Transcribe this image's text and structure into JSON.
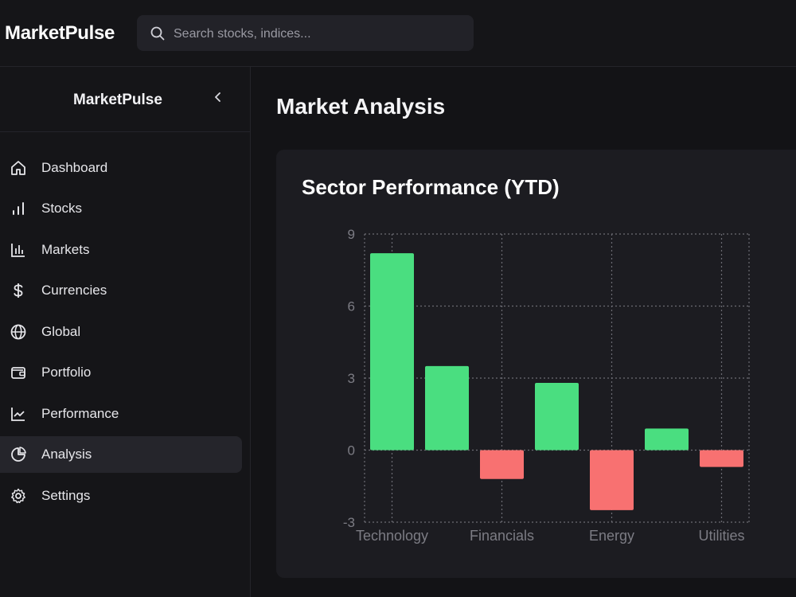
{
  "app": {
    "brand": "MarketPulse",
    "search": {
      "placeholder": "Search stocks, indices..."
    }
  },
  "sidebar": {
    "title": "MarketPulse",
    "items": [
      {
        "label": "Dashboard",
        "icon": "home-icon",
        "active": false
      },
      {
        "label": "Stocks",
        "icon": "bar-chart-icon",
        "active": false
      },
      {
        "label": "Markets",
        "icon": "chart-columns-icon",
        "active": false
      },
      {
        "label": "Currencies",
        "icon": "dollar-icon",
        "active": false
      },
      {
        "label": "Global",
        "icon": "globe-icon",
        "active": false
      },
      {
        "label": "Portfolio",
        "icon": "wallet-icon",
        "active": false
      },
      {
        "label": "Performance",
        "icon": "line-chart-icon",
        "active": false
      },
      {
        "label": "Analysis",
        "icon": "pie-chart-icon",
        "active": true
      },
      {
        "label": "Settings",
        "icon": "gear-icon",
        "active": false
      }
    ]
  },
  "main": {
    "title": "Market Analysis",
    "card": {
      "title": "Sector Performance (YTD)"
    }
  },
  "colors": {
    "positive": "#4ade80",
    "negative": "#f87171",
    "grid": "#6b6b73",
    "tick": "#7c7c84"
  },
  "chart_data": {
    "type": "bar",
    "title": "Sector Performance (YTD)",
    "categories": [
      "Technology",
      "",
      "Financials",
      "",
      "Energy",
      "",
      "Utilities"
    ],
    "values": [
      8.2,
      3.5,
      -1.2,
      2.8,
      -2.5,
      0.9,
      -0.7
    ],
    "x_tick_labels": [
      "Technology",
      "Financials",
      "Energy",
      "Utilities"
    ],
    "ylim": [
      -3,
      9
    ],
    "y_ticks": [
      -3,
      0,
      3,
      6,
      9
    ],
    "grid": true,
    "grid_style": "dotted",
    "legend": "none"
  }
}
